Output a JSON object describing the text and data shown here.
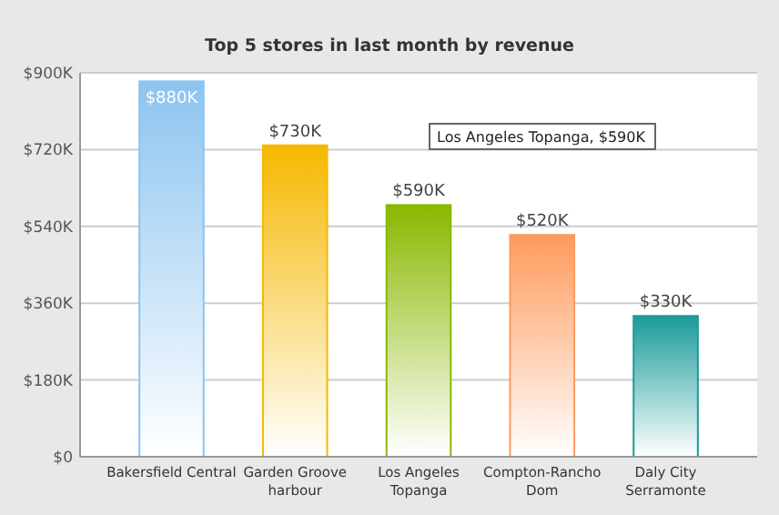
{
  "chart_data": {
    "type": "bar",
    "subtitle": "Top 5 stores in last month by revenue",
    "categories": [
      "Bakersfield Central",
      "Garden Groove\nharbour",
      "Los Angeles\nTopanga",
      "Compton-Rancho\nDom",
      "Daly City\nSerramonte"
    ],
    "values": [
      880,
      730,
      590,
      520,
      330
    ],
    "colors": [
      "#8cc4f0",
      "#f5b800",
      "#8ab800",
      "#ff9a5c",
      "#1a9a9a"
    ],
    "value_labels": [
      "$880K",
      "$730K",
      "$590K",
      "$520K",
      "$330K"
    ],
    "ylim": [
      0,
      900
    ],
    "yticks": [
      {
        "value": 0,
        "label": "$0"
      },
      {
        "value": 180,
        "label": "$180K"
      },
      {
        "value": 360,
        "label": "$360K"
      },
      {
        "value": 540,
        "label": "$540K"
      },
      {
        "value": 720,
        "label": "$720K"
      },
      {
        "value": 900,
        "label": "$900K"
      }
    ],
    "grid": "y",
    "annotations": [
      "Los Angeles Topanga, $590K"
    ]
  }
}
